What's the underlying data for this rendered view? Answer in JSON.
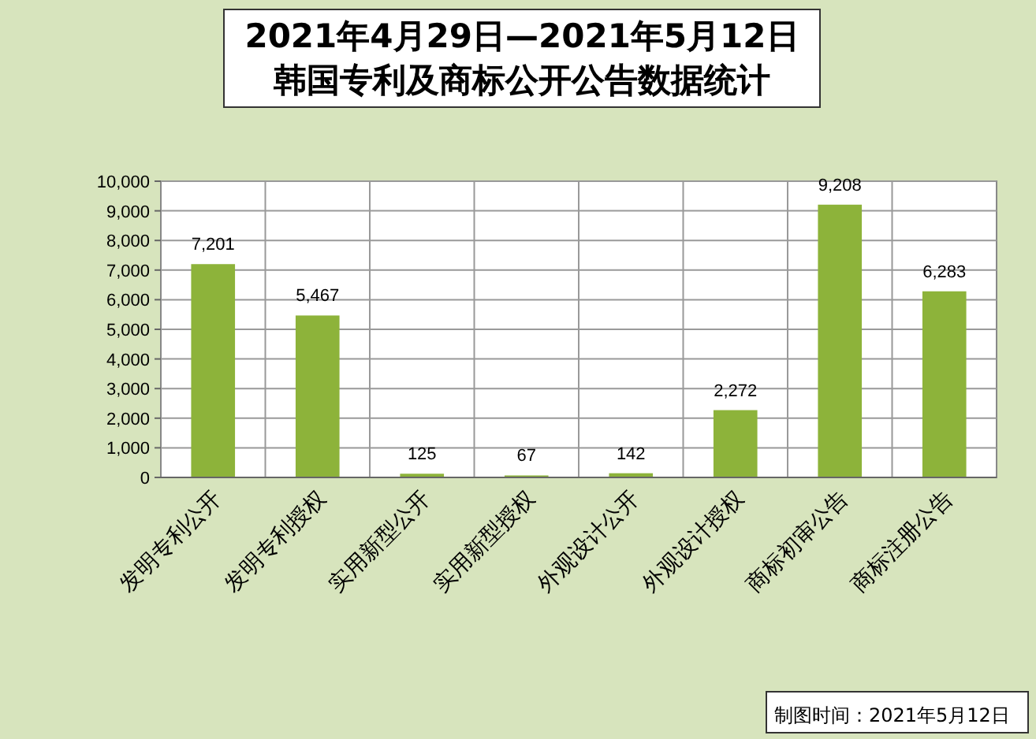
{
  "chart_data": {
    "type": "bar",
    "title": "2021年4月29日—2021年5月12日",
    "subtitle": "韩国专利及商标公开公告数据统计",
    "categories": [
      "发明专利公开",
      "发明专利授权",
      "实用新型公开",
      "实用新型授权",
      "外观设计公开",
      "外观设计授权",
      "商标初审公告",
      "商标注册公告"
    ],
    "values": [
      7201,
      5467,
      125,
      67,
      142,
      2272,
      9208,
      6283
    ],
    "color": "#8db33a",
    "ylim": [
      0,
      10000
    ],
    "yticks": [
      0,
      {
        "value": 1000,
        "label": "1,000"
      },
      {
        "value": 2000,
        "label": "2,000"
      },
      {
        "value": 3000,
        "label": "3,000"
      },
      {
        "value": 4000,
        "label": "4,000"
      },
      {
        "value": 5000,
        "label": "5,000"
      },
      {
        "value": 6000,
        "label": "6,000"
      },
      {
        "value": 7000,
        "label": "7,000"
      },
      {
        "value": 8000,
        "label": "8,000"
      },
      {
        "value": 9000,
        "label": "9,000"
      },
      {
        "value": 10000,
        "label": "10,000"
      }
    ],
    "value_labels": [
      "7,201",
      "5,467",
      "125",
      "67",
      "142",
      "2,272",
      "9,208",
      "6,283"
    ],
    "grid": true,
    "annotations": [
      "制图时间：2021年5月12日"
    ]
  }
}
